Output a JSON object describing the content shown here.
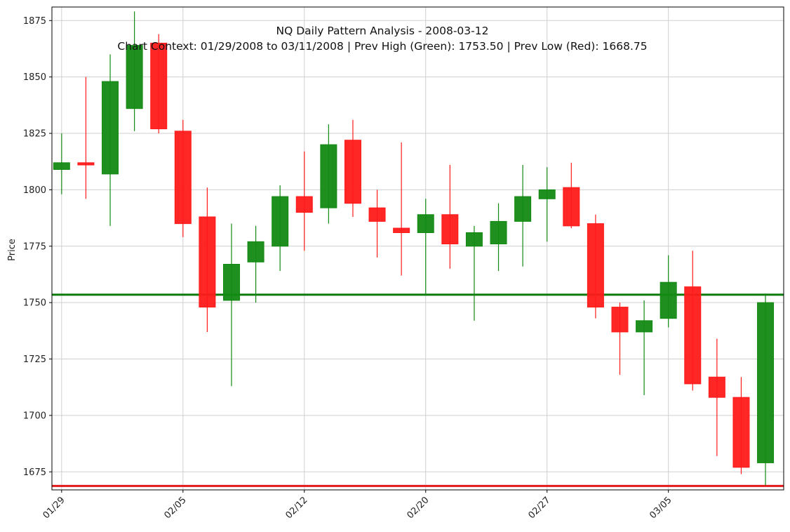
{
  "chart_data": {
    "type": "candlestick",
    "title": "NQ Daily Pattern Analysis - 2008-03-12",
    "subtitle": "Chart Context: 01/29/2008 to 03/11/2008 | Prev High (Green): 1753.50 | Prev Low (Red): 1668.75",
    "xlabel": "",
    "ylabel": "Price",
    "ylim": [
      1667,
      1881
    ],
    "xlim": [
      -0.4,
      29.75
    ],
    "grid": true,
    "y_ticks": [
      1675,
      1700,
      1725,
      1750,
      1775,
      1800,
      1825,
      1850,
      1875
    ],
    "x_ticks": [
      {
        "index": 0,
        "label": "01/29"
      },
      {
        "index": 5,
        "label": "02/05"
      },
      {
        "index": 10,
        "label": "02/12"
      },
      {
        "index": 15,
        "label": "02/20"
      },
      {
        "index": 20,
        "label": "02/27"
      },
      {
        "index": 25,
        "label": "03/05"
      }
    ],
    "candles": [
      {
        "open": 1809,
        "high": 1825,
        "low": 1798,
        "close": 1812
      },
      {
        "open": 1812,
        "high": 1850,
        "low": 1796,
        "close": 1811
      },
      {
        "open": 1807,
        "high": 1860,
        "low": 1784,
        "close": 1848
      },
      {
        "open": 1836,
        "high": 1879,
        "low": 1826,
        "close": 1864
      },
      {
        "open": 1865,
        "high": 1869,
        "low": 1825,
        "close": 1827
      },
      {
        "open": 1826,
        "high": 1831,
        "low": 1779,
        "close": 1785
      },
      {
        "open": 1788,
        "high": 1801,
        "low": 1737,
        "close": 1748
      },
      {
        "open": 1751,
        "high": 1785,
        "low": 1713,
        "close": 1767
      },
      {
        "open": 1768,
        "high": 1784,
        "low": 1750,
        "close": 1777
      },
      {
        "open": 1775,
        "high": 1802,
        "low": 1764,
        "close": 1797
      },
      {
        "open": 1797,
        "high": 1817,
        "low": 1773,
        "close": 1790
      },
      {
        "open": 1792,
        "high": 1829,
        "low": 1785,
        "close": 1820
      },
      {
        "open": 1822,
        "high": 1831,
        "low": 1788,
        "close": 1794
      },
      {
        "open": 1792,
        "high": 1800,
        "low": 1770,
        "close": 1786
      },
      {
        "open": 1783,
        "high": 1821,
        "low": 1762,
        "close": 1781
      },
      {
        "open": 1781,
        "high": 1796,
        "low": 1753,
        "close": 1789
      },
      {
        "open": 1789,
        "high": 1811,
        "low": 1765,
        "close": 1776
      },
      {
        "open": 1775,
        "high": 1784,
        "low": 1742,
        "close": 1781
      },
      {
        "open": 1776,
        "high": 1794,
        "low": 1764,
        "close": 1786
      },
      {
        "open": 1786,
        "high": 1811,
        "low": 1766,
        "close": 1797
      },
      {
        "open": 1796,
        "high": 1810,
        "low": 1777,
        "close": 1800
      },
      {
        "open": 1801,
        "high": 1812,
        "low": 1783,
        "close": 1784
      },
      {
        "open": 1785,
        "high": 1789,
        "low": 1743,
        "close": 1748
      },
      {
        "open": 1748,
        "high": 1750,
        "low": 1718,
        "close": 1737
      },
      {
        "open": 1737,
        "high": 1751,
        "low": 1709,
        "close": 1742
      },
      {
        "open": 1743,
        "high": 1771,
        "low": 1739,
        "close": 1759
      },
      {
        "open": 1757,
        "high": 1773,
        "low": 1711,
        "close": 1714
      },
      {
        "open": 1717,
        "high": 1734,
        "low": 1682,
        "close": 1708
      },
      {
        "open": 1708,
        "high": 1717,
        "low": 1674,
        "close": 1677
      },
      {
        "open": 1679,
        "high": 1754,
        "low": 1669,
        "close": 1750
      }
    ],
    "reference_lines": [
      {
        "value": 1753.5,
        "color": "#0e7a0e"
      },
      {
        "value": 1668.75,
        "color": "#e31a1c"
      }
    ],
    "colors": {
      "up": "#138a13",
      "down": "#ff1a1a",
      "grid": "#cfcfcf",
      "axis": "#000000"
    }
  }
}
